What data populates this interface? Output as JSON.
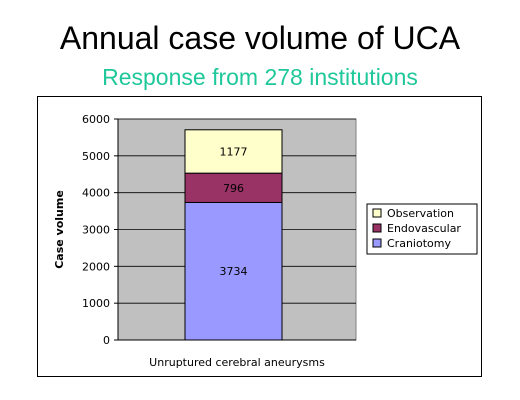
{
  "title": "Annual case volume of UCA",
  "subtitle": "Response from 278 institutions",
  "colors": {
    "subtitle": "#1fc89a",
    "plot_background": "#c0c0c0",
    "observation": "#ffffcc",
    "endovascular": "#993366",
    "craniotomy": "#9999ff"
  },
  "chart_data": {
    "type": "bar",
    "stacked": true,
    "categories": [
      "Unruptured cerebral aneurysms"
    ],
    "series": [
      {
        "name": "Craniotomy",
        "values": [
          3734
        ],
        "color": "#9999ff"
      },
      {
        "name": "Endovascular",
        "values": [
          796
        ],
        "color": "#993366"
      },
      {
        "name": "Observation",
        "values": [
          1177
        ],
        "color": "#ffffcc"
      }
    ],
    "data_labels": [
      "3734",
      "796",
      "1177"
    ],
    "ylabel": "Case volume",
    "xlabel": "",
    "ylim": [
      0,
      6000
    ],
    "yticks": [
      0,
      1000,
      2000,
      3000,
      4000,
      5000,
      6000
    ],
    "ytick_labels": [
      "0",
      "1000",
      "2000",
      "3000",
      "4000",
      "5000",
      "6000"
    ],
    "grid": true,
    "legend": {
      "placement": "right",
      "entries": [
        "Observation",
        "Endovascular",
        "Craniotomy"
      ]
    }
  }
}
